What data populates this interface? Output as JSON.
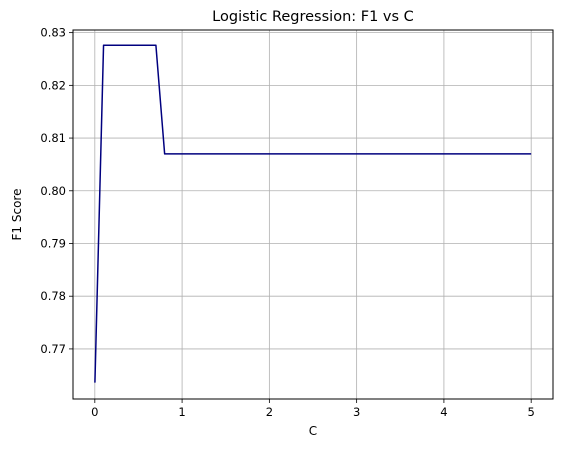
{
  "chart_data": {
    "type": "line",
    "title": "Logistic Regression: F1 vs C",
    "xlabel": "C",
    "ylabel": "F1 Score",
    "xlim": [
      -0.25,
      5.25
    ],
    "ylim": [
      0.7605,
      0.8305
    ],
    "xticks": [
      0,
      1,
      2,
      3,
      4,
      5
    ],
    "xtick_labels": [
      "0",
      "1",
      "2",
      "3",
      "4",
      "5"
    ],
    "yticks": [
      0.77,
      0.78,
      0.79,
      0.8,
      0.81,
      0.82,
      0.83
    ],
    "ytick_labels": [
      "0.77",
      "0.78",
      "0.79",
      "0.80",
      "0.81",
      "0.82",
      "0.83"
    ],
    "grid": true,
    "line_color": "#00007f",
    "series": [
      {
        "x": [
          0.001,
          0.1,
          0.2,
          0.3,
          0.4,
          0.5,
          0.6,
          0.7,
          0.8,
          0.9,
          1.0,
          1.5,
          2.0,
          2.5,
          3.0,
          3.5,
          4.0,
          4.5,
          5.0
        ],
        "values": [
          0.7636,
          0.8276,
          0.8276,
          0.8276,
          0.8276,
          0.8276,
          0.8276,
          0.8276,
          0.807,
          0.807,
          0.807,
          0.807,
          0.807,
          0.807,
          0.807,
          0.807,
          0.807,
          0.807,
          0.807
        ]
      }
    ]
  }
}
